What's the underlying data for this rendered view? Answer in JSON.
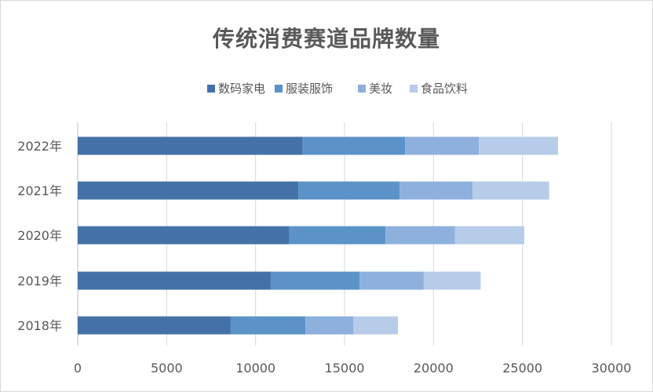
{
  "chart_data": {
    "type": "bar",
    "orientation": "horizontal",
    "stacked": true,
    "title": "传统消费赛道品牌数量",
    "categories": [
      "2018年",
      "2019年",
      "2020年",
      "2021年",
      "2022年"
    ],
    "series": [
      {
        "name": "数码家电",
        "color": "#4472a8",
        "values": [
          8600,
          10850,
          11900,
          12400,
          12650
        ]
      },
      {
        "name": "服装服饰",
        "color": "#5b93c8",
        "values": [
          4200,
          5000,
          5400,
          5700,
          5750
        ]
      },
      {
        "name": "美妆",
        "color": "#8db0dd",
        "values": [
          2700,
          3600,
          3900,
          4100,
          4150
        ]
      },
      {
        "name": "食品饮料",
        "color": "#b7cce8",
        "values": [
          2500,
          3200,
          3900,
          4300,
          4450
        ]
      }
    ],
    "xlim": [
      0,
      30000
    ],
    "x_ticks": [
      0,
      5000,
      10000,
      15000,
      20000,
      25000,
      30000
    ],
    "x_tick_labels": [
      "0",
      "5000",
      "10000",
      "15000",
      "20000",
      "25000",
      "30000"
    ],
    "grid": "vertical",
    "legend_position": "top-center"
  }
}
